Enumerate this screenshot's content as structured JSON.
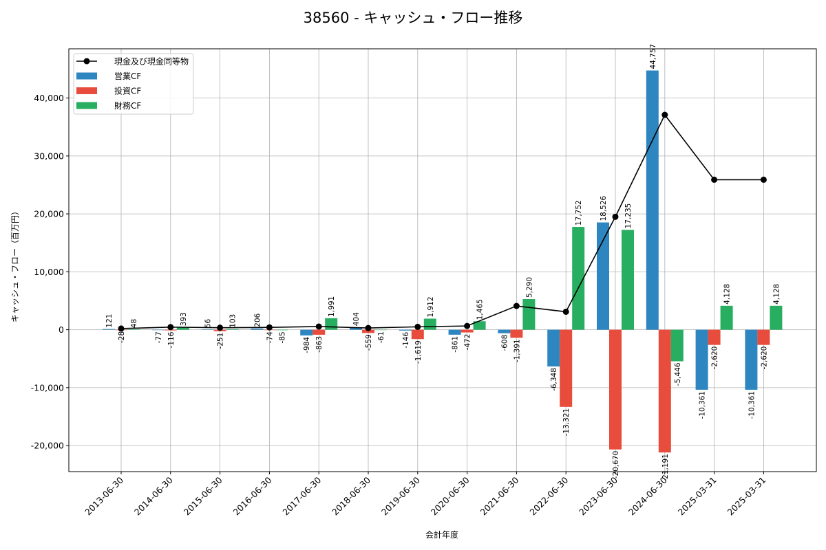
{
  "chart_data": {
    "type": "bar",
    "title": "38560 - キャッシュ・フロー推移",
    "xlabel": "会計年度",
    "ylabel": "キャッシュ・フロー（百万円）",
    "ylim": [
      -24500,
      48500
    ],
    "yticks": [
      -20000,
      -10000,
      0,
      10000,
      20000,
      30000,
      40000
    ],
    "ytick_labels": [
      "-20,000",
      "-10,000",
      "0",
      "10,000",
      "20,000",
      "30,000",
      "40,000"
    ],
    "grid": true,
    "legend_position": "top-left",
    "categories": [
      "2013-06-30",
      "2014-06-30",
      "2015-06-30",
      "2016-06-30",
      "2017-06-30",
      "2018-06-30",
      "2019-06-30",
      "2020-06-30",
      "2021-06-30",
      "2022-06-30",
      "2023-06-30",
      "2024-06-30",
      "2025-03-31",
      "2025-03-31"
    ],
    "series": [
      {
        "name": "営業CF",
        "kind": "bar",
        "color": "#2e86c1",
        "values": [
          121,
          -77,
          56,
          206,
          -984,
          404,
          -146,
          -861,
          -608,
          -6348,
          18526,
          44757,
          -10361,
          -10361
        ],
        "labels": [
          "121",
          "-77",
          "56",
          "206",
          "-984",
          "404",
          "-146",
          "-861",
          "-608",
          "-6,348",
          "18,526",
          "44,757",
          "-10,361",
          "-10,361"
        ]
      },
      {
        "name": "投資CF",
        "kind": "bar",
        "color": "#e74c3c",
        "values": [
          -28,
          -116,
          -251,
          -74,
          -863,
          -559,
          -1619,
          -472,
          -1391,
          -13321,
          -20670,
          -21191,
          -2620,
          -2620
        ],
        "labels": [
          "-28",
          "-116",
          "-251",
          "-74",
          "-863",
          "-559",
          "-1,619",
          "-472",
          "-1,391",
          "-13,321",
          "-20,670",
          "-21,191",
          "-2,620",
          "-2,620"
        ]
      },
      {
        "name": "財務CF",
        "kind": "bar",
        "color": "#27ae60",
        "values": [
          48,
          393,
          103,
          -85,
          1991,
          -61,
          1912,
          1465,
          5290,
          17752,
          17235,
          -5446,
          4128,
          4128
        ],
        "labels": [
          "48",
          "393",
          "103",
          "-85",
          "1,991",
          "-61",
          "1,912",
          "1,465",
          "5,290",
          "17,752",
          "17,235",
          "-5,446",
          "4,128",
          "4,128"
        ]
      },
      {
        "name": "現金及び現金同等物",
        "kind": "line",
        "color": "#000000",
        "values": [
          200,
          450,
          350,
          400,
          550,
          300,
          500,
          650,
          4100,
          3100,
          19500,
          37100,
          25900,
          25900
        ]
      }
    ]
  }
}
